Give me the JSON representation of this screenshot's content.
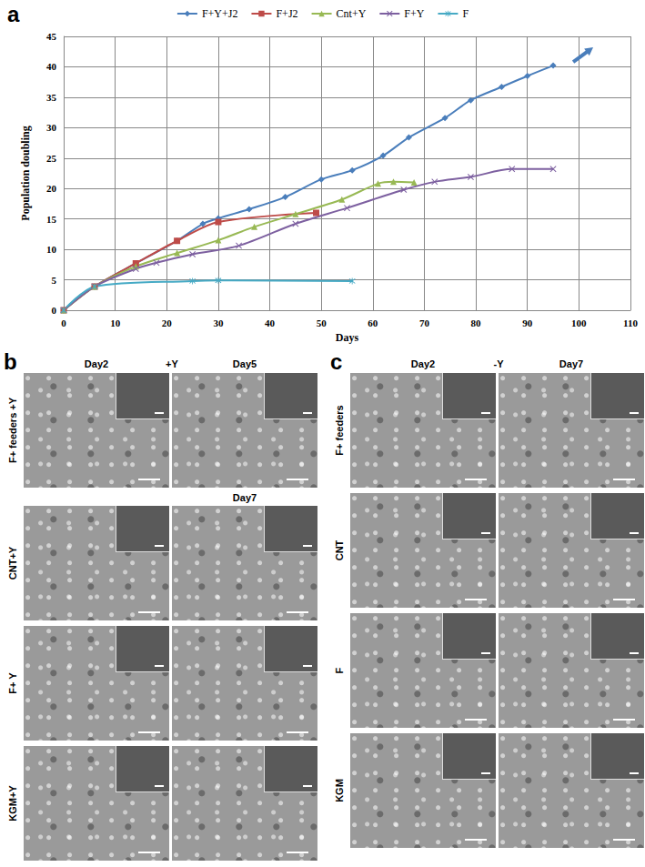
{
  "panel_letter": "a",
  "chart_data": {
    "type": "line",
    "x_label": "Days",
    "y_label": "Population doubling",
    "xlim": [
      0,
      110
    ],
    "xticks": [
      0,
      10,
      20,
      30,
      40,
      50,
      60,
      70,
      80,
      90,
      100,
      110
    ],
    "ylim": [
      0,
      45
    ],
    "yticks": [
      0,
      5,
      10,
      15,
      20,
      25,
      30,
      35,
      40,
      45
    ],
    "grid": true,
    "legend": "top",
    "series": [
      {
        "name": "F+Y+J2",
        "color": "#4a7ebb",
        "marker": "diamond",
        "x": [
          0,
          6,
          14,
          22,
          27,
          30,
          36,
          43,
          50,
          56,
          62,
          67,
          74,
          79,
          85,
          90,
          95
        ],
        "values": [
          0,
          3.9,
          7.7,
          11.4,
          14.2,
          15.1,
          16.6,
          18.6,
          21.5,
          23,
          25.4,
          28.4,
          31.6,
          34.5,
          36.7,
          38.5,
          40.2
        ]
      },
      {
        "name": "F+J2",
        "color": "#be4b48",
        "marker": "square",
        "x": [
          0,
          6,
          14,
          22,
          30,
          49
        ],
        "values": [
          0,
          3.9,
          7.7,
          11.4,
          14.5,
          16
        ]
      },
      {
        "name": "Cnt+Y",
        "color": "#98b954",
        "marker": "triangle",
        "x": [
          0,
          6,
          14,
          22,
          30,
          37,
          45,
          54,
          61,
          64,
          68
        ],
        "values": [
          0,
          3.9,
          7.2,
          9.4,
          11.5,
          13.7,
          15.8,
          18.2,
          20.8,
          21.1,
          21
        ]
      },
      {
        "name": "F+Y",
        "color": "#7d60a0",
        "marker": "x",
        "x": [
          0,
          6,
          14,
          18,
          25,
          34,
          45,
          55,
          66,
          72,
          79,
          87,
          95
        ],
        "values": [
          0,
          3.9,
          6.8,
          7.8,
          9.2,
          10.6,
          14.2,
          16.8,
          19.8,
          21.1,
          21.9,
          23.2,
          23.2
        ]
      },
      {
        "name": "F",
        "color": "#46aac5",
        "marker": "asterisk",
        "x": [
          0,
          6,
          25,
          30,
          56
        ],
        "values": [
          0,
          3.9,
          4.8,
          4.9,
          4.8
        ]
      }
    ]
  },
  "micrographs": [
    {
      "letter": "b",
      "condition": "+Y",
      "days": [
        "Day2",
        "Day5"
      ],
      "rows": [
        {
          "label": "F+ feeders +Y"
        },
        {
          "label": "CNT+Y",
          "days": [
            null,
            "Day7"
          ]
        },
        {
          "label": "F+ Y"
        },
        {
          "label": "KGM+Y"
        }
      ]
    },
    {
      "letter": "c",
      "condition": "-Y",
      "days": [
        "Day2",
        "Day7"
      ],
      "rows": [
        {
          "label": "F+ feeders"
        },
        {
          "label": "CNT"
        },
        {
          "label": "F"
        },
        {
          "label": "KGM"
        }
      ]
    }
  ]
}
